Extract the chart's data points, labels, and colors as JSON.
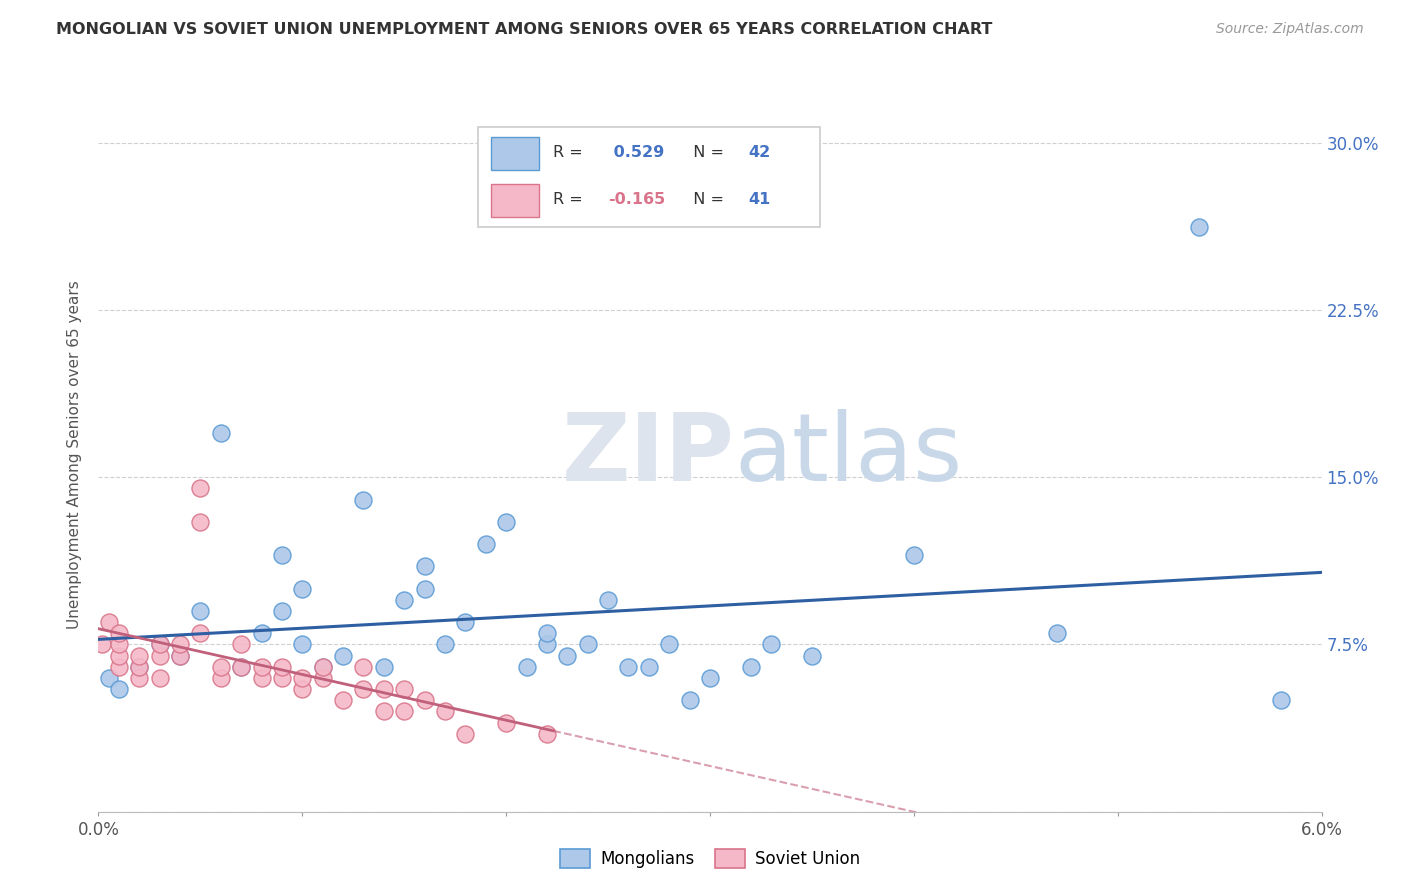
{
  "title": "MONGOLIAN VS SOVIET UNION UNEMPLOYMENT AMONG SENIORS OVER 65 YEARS CORRELATION CHART",
  "source": "Source: ZipAtlas.com",
  "ylabel": "Unemployment Among Seniors over 65 years",
  "xlim": [
    0.0,
    0.06
  ],
  "ylim": [
    0.0,
    0.32
  ],
  "xticks": [
    0.0,
    0.01,
    0.02,
    0.03,
    0.04,
    0.05,
    0.06
  ],
  "xticklabels": [
    "0.0%",
    "",
    "",
    "",
    "",
    "",
    "6.0%"
  ],
  "yticks": [
    0.0,
    0.075,
    0.15,
    0.225,
    0.3
  ],
  "yticklabels_right": [
    "",
    "7.5%",
    "15.0%",
    "22.5%",
    "30.0%"
  ],
  "mongolian_R": 0.529,
  "mongolian_N": 42,
  "soviet_R": -0.165,
  "soviet_N": 41,
  "mongolian_color": "#adc8e8",
  "mongolian_edge_color": "#5b9bd5",
  "soviet_color": "#f5b8c8",
  "soviet_edge_color": "#d9748a",
  "mongolian_line_color": "#2e5fa3",
  "soviet_line_color": "#c0607a",
  "watermark_zip": "ZIP",
  "watermark_atlas": "atlas",
  "mongolian_x": [
    0.0005,
    0.001,
    0.002,
    0.003,
    0.004,
    0.005,
    0.006,
    0.007,
    0.008,
    0.009,
    0.009,
    0.01,
    0.01,
    0.011,
    0.012,
    0.013,
    0.014,
    0.015,
    0.016,
    0.016,
    0.017,
    0.018,
    0.019,
    0.02,
    0.021,
    0.022,
    0.022,
    0.023,
    0.024,
    0.025,
    0.026,
    0.027,
    0.028,
    0.029,
    0.03,
    0.032,
    0.033,
    0.035,
    0.04,
    0.047,
    0.054,
    0.058
  ],
  "mongolian_y": [
    0.06,
    0.055,
    0.065,
    0.075,
    0.07,
    0.09,
    0.17,
    0.065,
    0.08,
    0.115,
    0.09,
    0.1,
    0.075,
    0.065,
    0.07,
    0.14,
    0.065,
    0.095,
    0.1,
    0.11,
    0.075,
    0.085,
    0.12,
    0.13,
    0.065,
    0.075,
    0.08,
    0.07,
    0.075,
    0.095,
    0.065,
    0.065,
    0.075,
    0.05,
    0.06,
    0.065,
    0.075,
    0.07,
    0.115,
    0.08,
    0.262,
    0.05
  ],
  "soviet_x": [
    0.0002,
    0.0005,
    0.001,
    0.001,
    0.001,
    0.001,
    0.002,
    0.002,
    0.002,
    0.003,
    0.003,
    0.003,
    0.004,
    0.004,
    0.005,
    0.005,
    0.005,
    0.006,
    0.006,
    0.007,
    0.007,
    0.008,
    0.008,
    0.009,
    0.009,
    0.01,
    0.01,
    0.011,
    0.011,
    0.012,
    0.013,
    0.013,
    0.014,
    0.014,
    0.015,
    0.015,
    0.016,
    0.017,
    0.018,
    0.02,
    0.022
  ],
  "soviet_y": [
    0.075,
    0.085,
    0.065,
    0.07,
    0.075,
    0.08,
    0.06,
    0.065,
    0.07,
    0.06,
    0.07,
    0.075,
    0.07,
    0.075,
    0.08,
    0.13,
    0.145,
    0.06,
    0.065,
    0.065,
    0.075,
    0.06,
    0.065,
    0.06,
    0.065,
    0.055,
    0.06,
    0.06,
    0.065,
    0.05,
    0.055,
    0.065,
    0.045,
    0.055,
    0.045,
    0.055,
    0.05,
    0.045,
    0.035,
    0.04,
    0.035
  ]
}
